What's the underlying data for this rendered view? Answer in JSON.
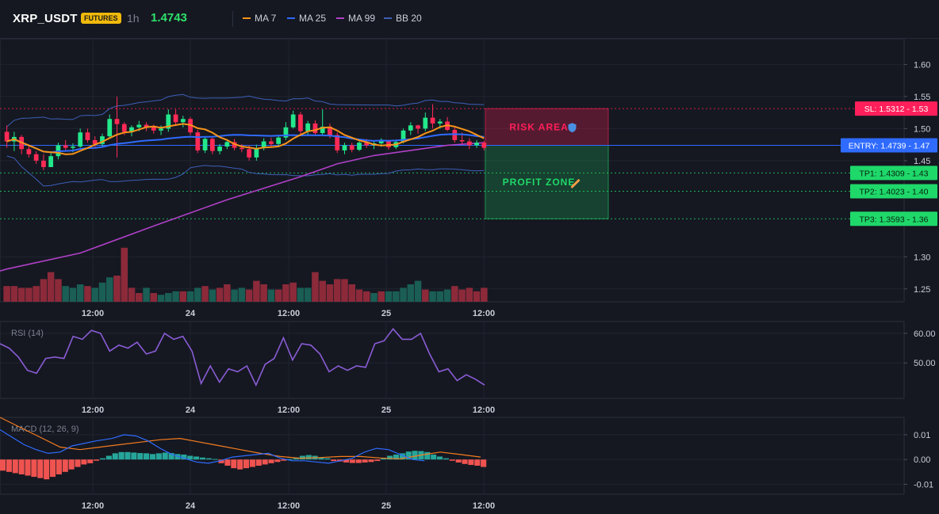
{
  "header": {
    "symbol": "XRP_USDT",
    "badge": "FUTURES",
    "timeframe": "1h",
    "price": "1.4743",
    "indicators": [
      {
        "label": "MA 7",
        "color": "#f7931a"
      },
      {
        "label": "MA 25",
        "color": "#2f6bff"
      },
      {
        "label": "MA 99",
        "color": "#b040c8"
      },
      {
        "label": "BB 20",
        "color": "#3d5fb8"
      }
    ]
  },
  "chart_data": [
    {
      "type": "candlestick",
      "title": "",
      "ylim": [
        1.23,
        1.64
      ],
      "y_ticks": [
        1.6,
        1.55,
        1.5,
        1.45,
        1.3,
        1.25
      ],
      "x_ticks": [
        "12:00",
        "24",
        "12:00",
        "25",
        "12:00"
      ],
      "candles": [
        [
          1.495,
          1.505,
          1.47,
          1.48
        ],
        [
          1.48,
          1.495,
          1.465,
          1.487
        ],
        [
          1.487,
          1.49,
          1.46,
          1.468
        ],
        [
          1.468,
          1.475,
          1.455,
          1.46
        ],
        [
          1.46,
          1.465,
          1.445,
          1.45
        ],
        [
          1.45,
          1.46,
          1.435,
          1.44
        ],
        [
          1.44,
          1.462,
          1.44,
          1.457
        ],
        [
          1.457,
          1.478,
          1.452,
          1.474
        ],
        [
          1.474,
          1.482,
          1.466,
          1.47
        ],
        [
          1.47,
          1.477,
          1.463,
          1.472
        ],
        [
          1.472,
          1.5,
          1.47,
          1.494
        ],
        [
          1.494,
          1.5,
          1.478,
          1.482
        ],
        [
          1.482,
          1.488,
          1.47,
          1.476
        ],
        [
          1.476,
          1.492,
          1.472,
          1.488
        ],
        [
          1.488,
          1.522,
          1.485,
          1.515
        ],
        [
          1.515,
          1.55,
          1.455,
          1.507
        ],
        [
          1.507,
          1.51,
          1.49,
          1.495
        ],
        [
          1.495,
          1.505,
          1.488,
          1.502
        ],
        [
          1.502,
          1.512,
          1.496,
          1.506
        ],
        [
          1.506,
          1.51,
          1.496,
          1.502
        ],
        [
          1.502,
          1.506,
          1.492,
          1.497
        ],
        [
          1.497,
          1.505,
          1.49,
          1.5
        ],
        [
          1.5,
          1.53,
          1.495,
          1.522
        ],
        [
          1.522,
          1.53,
          1.505,
          1.51
        ],
        [
          1.51,
          1.52,
          1.502,
          1.515
        ],
        [
          1.515,
          1.518,
          1.49,
          1.494
        ],
        [
          1.494,
          1.498,
          1.462,
          1.466
        ],
        [
          1.466,
          1.488,
          1.462,
          1.484
        ],
        [
          1.484,
          1.486,
          1.46,
          1.465
        ],
        [
          1.465,
          1.476,
          1.46,
          1.472
        ],
        [
          1.472,
          1.483,
          1.468,
          1.479
        ],
        [
          1.479,
          1.484,
          1.466,
          1.47
        ],
        [
          1.47,
          1.476,
          1.463,
          1.468
        ],
        [
          1.468,
          1.474,
          1.45,
          1.455
        ],
        [
          1.455,
          1.475,
          1.45,
          1.47
        ],
        [
          1.47,
          1.485,
          1.466,
          1.48
        ],
        [
          1.48,
          1.486,
          1.472,
          1.476
        ],
        [
          1.476,
          1.49,
          1.474,
          1.486
        ],
        [
          1.486,
          1.51,
          1.482,
          1.502
        ],
        [
          1.502,
          1.528,
          1.5,
          1.522
        ],
        [
          1.522,
          1.526,
          1.49,
          1.496
        ],
        [
          1.496,
          1.512,
          1.49,
          1.508
        ],
        [
          1.508,
          1.513,
          1.49,
          1.493
        ],
        [
          1.493,
          1.53,
          1.49,
          1.503
        ],
        [
          1.503,
          1.508,
          1.485,
          1.49
        ],
        [
          1.49,
          1.494,
          1.462,
          1.466
        ],
        [
          1.466,
          1.478,
          1.46,
          1.474
        ],
        [
          1.474,
          1.478,
          1.463,
          1.467
        ],
        [
          1.467,
          1.48,
          1.465,
          1.478
        ],
        [
          1.478,
          1.484,
          1.47,
          1.474
        ],
        [
          1.474,
          1.48,
          1.468,
          1.477
        ],
        [
          1.477,
          1.485,
          1.472,
          1.48
        ],
        [
          1.48,
          1.482,
          1.467,
          1.471
        ],
        [
          1.471,
          1.483,
          1.468,
          1.479
        ],
        [
          1.479,
          1.5,
          1.477,
          1.497
        ],
        [
          1.497,
          1.51,
          1.49,
          1.505
        ],
        [
          1.505,
          1.506,
          1.492,
          1.5
        ],
        [
          1.5,
          1.525,
          1.496,
          1.517
        ],
        [
          1.517,
          1.538,
          1.5,
          1.508
        ],
        [
          1.508,
          1.515,
          1.5,
          1.511
        ],
        [
          1.511,
          1.518,
          1.496,
          1.498
        ],
        [
          1.498,
          1.502,
          1.478,
          1.482
        ],
        [
          1.482,
          1.494,
          1.476,
          1.48
        ],
        [
          1.48,
          1.485,
          1.468,
          1.474
        ],
        [
          1.474,
          1.482,
          1.47,
          1.478
        ],
        [
          1.478,
          1.481,
          1.466,
          1.47
        ]
      ],
      "volume": [
        [
          0.18,
          "d"
        ],
        [
          0.18,
          "d"
        ],
        [
          0.16,
          "d"
        ],
        [
          0.16,
          "d"
        ],
        [
          0.18,
          "d"
        ],
        [
          0.26,
          "d"
        ],
        [
          0.34,
          "d"
        ],
        [
          0.26,
          "d"
        ],
        [
          0.18,
          "u"
        ],
        [
          0.16,
          "u"
        ],
        [
          0.2,
          "u"
        ],
        [
          0.18,
          "d"
        ],
        [
          0.16,
          "u"
        ],
        [
          0.22,
          "u"
        ],
        [
          0.28,
          "u"
        ],
        [
          0.3,
          "d"
        ],
        [
          0.62,
          "d"
        ],
        [
          0.16,
          "d"
        ],
        [
          0.1,
          "d"
        ],
        [
          0.16,
          "u"
        ],
        [
          0.1,
          "d"
        ],
        [
          0.08,
          "u"
        ],
        [
          0.1,
          "u"
        ],
        [
          0.12,
          "u"
        ],
        [
          0.12,
          "d"
        ],
        [
          0.12,
          "u"
        ],
        [
          0.16,
          "u"
        ],
        [
          0.18,
          "d"
        ],
        [
          0.14,
          "u"
        ],
        [
          0.16,
          "d"
        ],
        [
          0.2,
          "d"
        ],
        [
          0.14,
          "u"
        ],
        [
          0.16,
          "u"
        ],
        [
          0.14,
          "d"
        ],
        [
          0.24,
          "d"
        ],
        [
          0.2,
          "d"
        ],
        [
          0.14,
          "u"
        ],
        [
          0.14,
          "d"
        ],
        [
          0.2,
          "d"
        ],
        [
          0.22,
          "d"
        ],
        [
          0.16,
          "u"
        ],
        [
          0.16,
          "u"
        ],
        [
          0.34,
          "d"
        ],
        [
          0.24,
          "d"
        ],
        [
          0.2,
          "d"
        ],
        [
          0.26,
          "d"
        ],
        [
          0.26,
          "d"
        ],
        [
          0.2,
          "d"
        ],
        [
          0.14,
          "d"
        ],
        [
          0.12,
          "d"
        ],
        [
          0.1,
          "u"
        ],
        [
          0.12,
          "d"
        ],
        [
          0.12,
          "u"
        ],
        [
          0.12,
          "u"
        ],
        [
          0.16,
          "u"
        ],
        [
          0.2,
          "u"
        ],
        [
          0.24,
          "u"
        ],
        [
          0.14,
          "d"
        ],
        [
          0.12,
          "u"
        ],
        [
          0.12,
          "u"
        ],
        [
          0.14,
          "u"
        ],
        [
          0.18,
          "d"
        ],
        [
          0.14,
          "d"
        ],
        [
          0.16,
          "d"
        ],
        [
          0.12,
          "d"
        ],
        [
          0.16,
          "d"
        ]
      ],
      "ma99": [
        [
          0,
          1.281
        ],
        [
          10,
          1.306
        ],
        [
          20,
          1.348
        ],
        [
          30,
          1.389
        ],
        [
          40,
          1.425
        ],
        [
          45,
          1.445
        ],
        [
          50,
          1.458
        ],
        [
          55,
          1.466
        ],
        [
          60,
          1.474
        ],
        [
          65,
          1.478
        ]
      ],
      "levels": [
        {
          "label": "SL: 1.5312 - 1.53",
          "value": 1.5312,
          "color": "#ff1f5a"
        },
        {
          "label": "ENTRY: 1.4739 - 1.47",
          "value": 1.4739,
          "color": "#2f6bff"
        },
        {
          "label": "TP1: 1.4309 - 1.43",
          "value": 1.4309,
          "color": "#1fd86a"
        },
        {
          "label": "TP2: 1.4023 - 1.40",
          "value": 1.4023,
          "color": "#1fd86a"
        },
        {
          "label": "TP3: 1.3593 - 1.36",
          "value": 1.3593,
          "color": "#1fd86a"
        }
      ],
      "zones": [
        {
          "label": "RISK AREA",
          "from": 1.4739,
          "to": 1.5312,
          "color": "#ff1f5a"
        },
        {
          "label": "PROFIT ZONE",
          "from": 1.3593,
          "to": 1.4739,
          "color": "#1fd86a"
        }
      ]
    },
    {
      "type": "line",
      "title": "RSI (14)",
      "ylim": [
        38,
        64
      ],
      "y_ticks": [
        60.0,
        50.0
      ],
      "x_ticks": [
        "12:00",
        "24",
        "12:00",
        "25",
        "12:00"
      ],
      "values": [
        56.5,
        55,
        52,
        47.5,
        46.5,
        51.5,
        52,
        51.5,
        59,
        58,
        61,
        60,
        54,
        56,
        55,
        57,
        53,
        54,
        60,
        58,
        59,
        54,
        43,
        49,
        43.5,
        48,
        47,
        49,
        42.5,
        49.5,
        51.5,
        58.5,
        51,
        56.5,
        56,
        53,
        47,
        49,
        47.5,
        49,
        48.5,
        56.5,
        57.5,
        61.5,
        58,
        58,
        60,
        53,
        47,
        48,
        44,
        46,
        44.5,
        42.5
      ]
    },
    {
      "type": "bar",
      "title": "MACD (12, 26, 9)",
      "ylim": [
        -0.014,
        0.017
      ],
      "y_ticks": [
        0.01,
        0.0,
        -0.01
      ],
      "x_ticks": [
        "12:00",
        "24",
        "12:00",
        "25",
        "12:00"
      ],
      "histogram": [
        -0.0045,
        -0.005,
        -0.0055,
        -0.006,
        -0.0065,
        -0.007,
        -0.0075,
        -0.008,
        -0.007,
        -0.006,
        -0.005,
        -0.004,
        -0.003,
        -0.002,
        -0.0015,
        -0.0005,
        0.0005,
        0.0015,
        0.0025,
        0.003,
        0.003,
        0.0028,
        0.0026,
        0.0025,
        0.0022,
        0.0025,
        0.0028,
        0.0026,
        0.0022,
        0.002,
        0.0015,
        0.0012,
        0.0008,
        0.0005,
        0.0002,
        -0.0015,
        -0.0025,
        -0.0035,
        -0.004,
        -0.0035,
        -0.003,
        -0.0025,
        -0.002,
        -0.0015,
        -0.001,
        -0.0005,
        0.0002,
        0.0008,
        0.0015,
        0.0018,
        0.0015,
        0.0008,
        0.0005,
        -0.0006,
        -0.0008,
        -0.0012,
        -0.0014,
        -0.0014,
        -0.0012,
        -0.001,
        -0.0006,
        0.0005,
        0.0015,
        0.002,
        0.0025,
        0.0032,
        0.0035,
        0.0034,
        0.003,
        0.002,
        0.0012,
        0.0005,
        -0.0005,
        -0.0012,
        -0.0018,
        -0.0022,
        -0.0025,
        -0.003
      ],
      "macd_line": [
        [
          0,
          0.012
        ],
        [
          3,
          0.009
        ],
        [
          6,
          0.006
        ],
        [
          9,
          0.004
        ],
        [
          12,
          0.0025
        ],
        [
          15,
          0.003
        ],
        [
          18,
          0.0055
        ],
        [
          21,
          0.0065
        ],
        [
          24,
          0.0075
        ],
        [
          28,
          0.0085
        ],
        [
          31,
          0.01
        ],
        [
          34,
          0.0095
        ],
        [
          37,
          0.0075
        ],
        [
          40,
          0.0045
        ],
        [
          43,
          0.002
        ],
        [
          46,
          0.0005
        ],
        [
          49,
          -0.001
        ],
        [
          52,
          -0.0015
        ],
        [
          55,
          -0.0005
        ],
        [
          58,
          0.001
        ],
        [
          61,
          0.0015
        ],
        [
          64,
          0.002
        ],
        [
          67,
          0.0025
        ],
        [
          70,
          0.0005
        ],
        [
          73,
          -0.0005
        ],
        [
          76,
          -0.0005
        ],
        [
          79,
          -0.001
        ],
        [
          82,
          -0.0015
        ],
        [
          85,
          -0.0005
        ],
        [
          88,
          0.0005
        ],
        [
          91,
          0.003
        ],
        [
          94,
          0.0045
        ],
        [
          97,
          0.004
        ],
        [
          100,
          0.002
        ],
        [
          103,
          0
        ],
        [
          106,
          -0.0005
        ]
      ],
      "signal_line": [
        [
          0,
          0.017
        ],
        [
          5,
          0.013
        ],
        [
          10,
          0.009
        ],
        [
          15,
          0.005
        ],
        [
          20,
          0.004
        ],
        [
          25,
          0.005
        ],
        [
          30,
          0.006
        ],
        [
          35,
          0.007
        ],
        [
          40,
          0.008
        ],
        [
          45,
          0.0085
        ],
        [
          50,
          0.007
        ],
        [
          55,
          0.0055
        ],
        [
          60,
          0.004
        ],
        [
          65,
          0.0025
        ],
        [
          70,
          0.0012
        ],
        [
          75,
          0.0005
        ],
        [
          80,
          0.0008
        ],
        [
          85,
          0.0012
        ],
        [
          90,
          0.0012
        ],
        [
          95,
          0.0006
        ],
        [
          100,
          0.0003
        ],
        [
          106,
          0.002
        ],
        [
          110,
          0.003
        ],
        [
          115,
          0.002
        ],
        [
          120,
          0.001
        ]
      ]
    }
  ]
}
